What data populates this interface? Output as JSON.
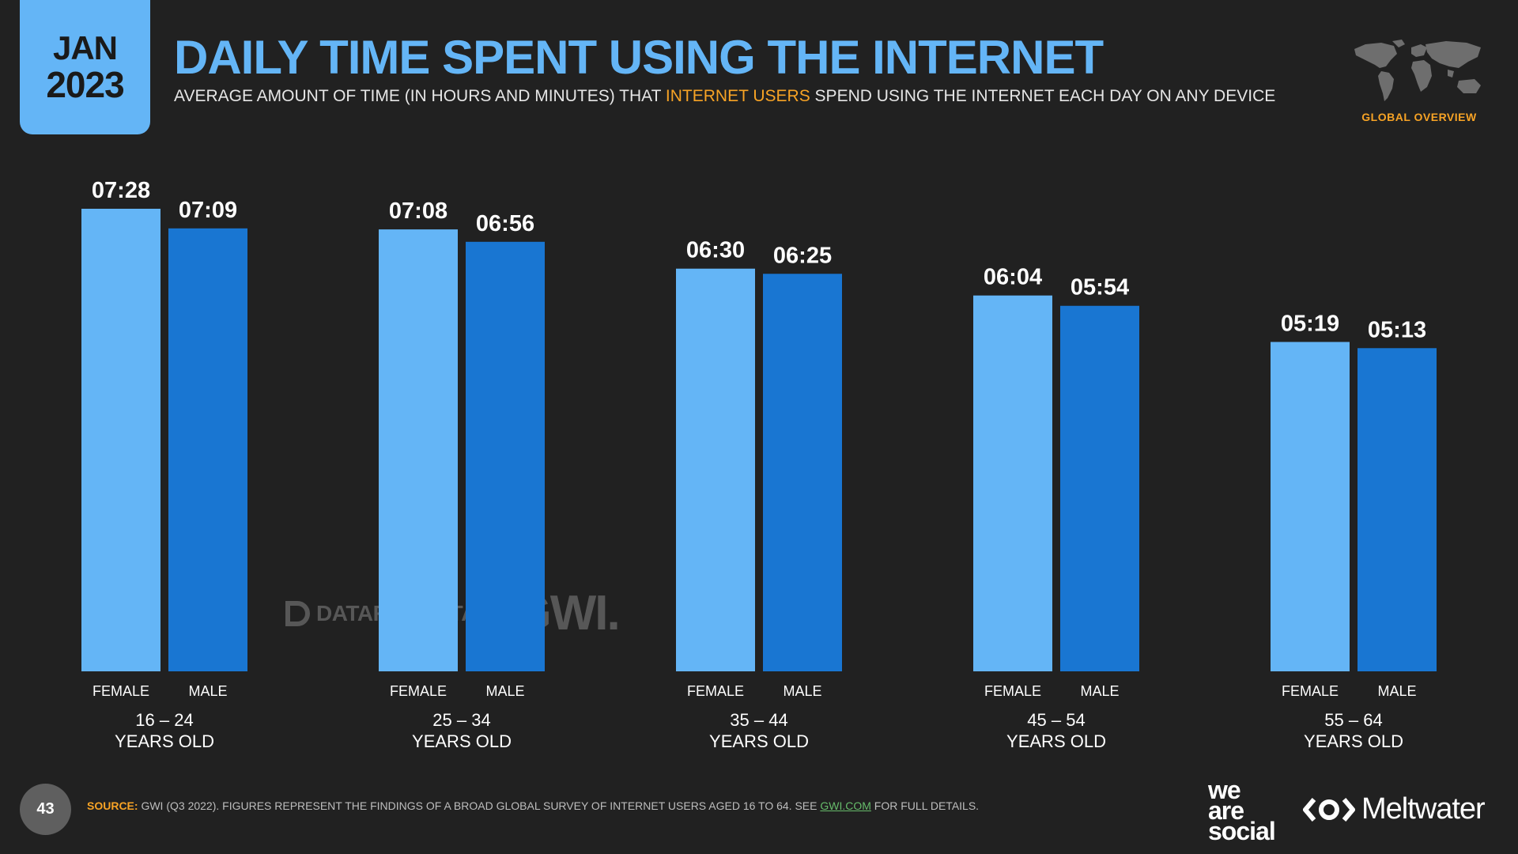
{
  "header": {
    "month": "JAN",
    "year": "2023",
    "title": "DAILY TIME SPENT USING THE INTERNET",
    "subtitle_pre": "AVERAGE AMOUNT OF TIME (IN HOURS AND MINUTES) THAT ",
    "subtitle_highlight": "INTERNET USERS",
    "subtitle_post": " SPEND USING THE INTERNET EACH DAY ON ANY DEVICE",
    "region_label": "GLOBAL OVERVIEW"
  },
  "chart_data": {
    "type": "bar",
    "title": "DAILY TIME SPENT USING THE INTERNET",
    "categories": [
      [
        "16 – 24",
        "YEARS OLD"
      ],
      [
        "25 – 34",
        "YEARS OLD"
      ],
      [
        "35 – 44",
        "YEARS OLD"
      ],
      [
        "45 – 54",
        "YEARS OLD"
      ],
      [
        "55 – 64",
        "YEARS OLD"
      ]
    ],
    "series": [
      {
        "name": "FEMALE",
        "color": "#64b5f6",
        "values": [
          448,
          428,
          390,
          364,
          319
        ],
        "labels": [
          "07:28",
          "07:08",
          "06:30",
          "06:04",
          "05:19"
        ]
      },
      {
        "name": "MALE",
        "color": "#1976d2",
        "values": [
          429,
          416,
          385,
          354,
          313
        ],
        "labels": [
          "07:09",
          "06:56",
          "06:25",
          "05:54",
          "05:13"
        ]
      }
    ],
    "unit": "minutes",
    "ylim": [
      0,
      448
    ],
    "grid": false,
    "legend": "none"
  },
  "watermark": {
    "datareportal": "DATAREPORTAL",
    "gwi": "GWI."
  },
  "footer": {
    "page_number": "43",
    "source_label": "SOURCE:",
    "source_text": " GWI (Q3 2022). FIGURES REPRESENT THE FINDINGS OF A BROAD GLOBAL SURVEY OF INTERNET USERS AGED 16 TO 64. SEE ",
    "source_link": "GWI.COM",
    "source_end": " FOR FULL DETAILS.",
    "brand1_line1": "we",
    "brand1_line2": "are",
    "brand1_line3": "social",
    "brand2": "Meltwater"
  }
}
